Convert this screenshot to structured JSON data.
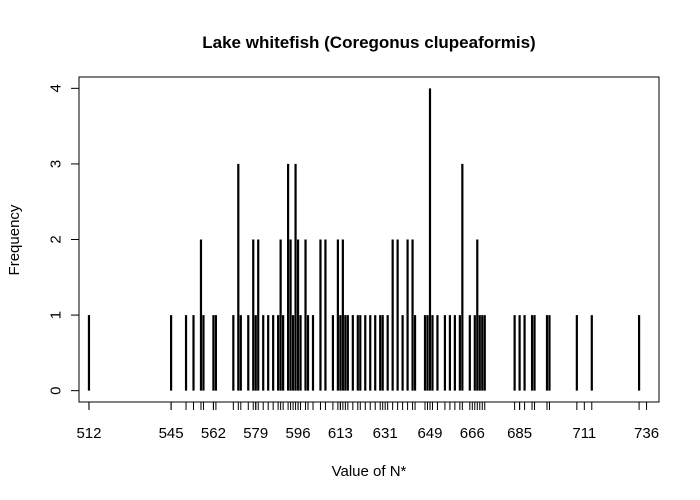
{
  "chart_data": {
    "type": "bar",
    "title": "Lake whitefish (Coregonus clupeaformis)",
    "xlabel": "Value of N*",
    "ylabel": "Frequency",
    "xlim": [
      508,
      741
    ],
    "ylim": [
      -0.15,
      4.15
    ],
    "x_ticks": [
      512,
      545,
      562,
      579,
      596,
      613,
      631,
      649,
      666,
      685,
      711,
      736
    ],
    "y_ticks": [
      0,
      1,
      2,
      3,
      4
    ],
    "grid": false,
    "legend": "none",
    "points": [
      [
        512,
        1
      ],
      [
        545,
        1
      ],
      [
        551,
        1
      ],
      [
        554,
        1
      ],
      [
        557,
        2
      ],
      [
        558,
        1
      ],
      [
        562,
        1
      ],
      [
        563,
        1
      ],
      [
        570,
        1
      ],
      [
        572,
        3
      ],
      [
        573,
        1
      ],
      [
        576,
        1
      ],
      [
        578,
        2
      ],
      [
        579,
        1
      ],
      [
        580,
        2
      ],
      [
        582,
        1
      ],
      [
        584,
        1
      ],
      [
        586,
        1
      ],
      [
        588,
        1
      ],
      [
        589,
        2
      ],
      [
        590,
        1
      ],
      [
        592,
        3
      ],
      [
        593,
        2
      ],
      [
        594,
        1
      ],
      [
        595,
        3
      ],
      [
        596,
        2
      ],
      [
        597,
        1
      ],
      [
        599,
        2
      ],
      [
        600,
        1
      ],
      [
        602,
        1
      ],
      [
        605,
        2
      ],
      [
        607,
        2
      ],
      [
        610,
        1
      ],
      [
        612,
        2
      ],
      [
        613,
        1
      ],
      [
        614,
        2
      ],
      [
        615,
        1
      ],
      [
        616,
        1
      ],
      [
        618,
        1
      ],
      [
        620,
        1
      ],
      [
        621,
        1
      ],
      [
        623,
        1
      ],
      [
        625,
        1
      ],
      [
        627,
        1
      ],
      [
        629,
        1
      ],
      [
        630,
        1
      ],
      [
        632,
        1
      ],
      [
        634,
        2
      ],
      [
        636,
        2
      ],
      [
        638,
        1
      ],
      [
        640,
        2
      ],
      [
        642,
        2
      ],
      [
        643,
        1
      ],
      [
        647,
        1
      ],
      [
        648,
        1
      ],
      [
        649,
        4
      ],
      [
        650,
        1
      ],
      [
        652,
        1
      ],
      [
        655,
        1
      ],
      [
        657,
        1
      ],
      [
        659,
        1
      ],
      [
        661,
        1
      ],
      [
        662,
        3
      ],
      [
        665,
        1
      ],
      [
        667,
        1
      ],
      [
        668,
        2
      ],
      [
        669,
        1
      ],
      [
        670,
        1
      ],
      [
        671,
        1
      ],
      [
        683,
        1
      ],
      [
        685,
        1
      ],
      [
        687,
        1
      ],
      [
        690,
        1
      ],
      [
        691,
        1
      ],
      [
        696,
        1
      ],
      [
        697,
        1
      ],
      [
        708,
        1
      ],
      [
        714,
        1
      ],
      [
        733,
        1
      ]
    ]
  }
}
